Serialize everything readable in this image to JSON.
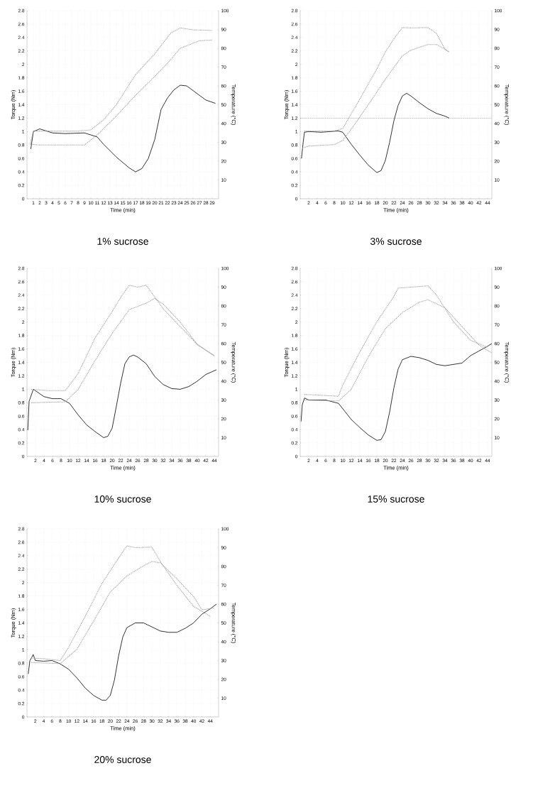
{
  "chart_data": [
    {
      "type": "line",
      "title": "1% sucrose",
      "xlabel": "Time (min)",
      "ylabel": "Torque (Nm)",
      "y2label": "Temperature (°C)",
      "grid": true,
      "xlim": [
        0,
        30
      ],
      "xticks": [
        1,
        2,
        3,
        4,
        5,
        6,
        7,
        8,
        9,
        10,
        11,
        12,
        13,
        14,
        15,
        16,
        17,
        18,
        19,
        20,
        21,
        22,
        23,
        24,
        25,
        26,
        27,
        28,
        29
      ],
      "ylim": [
        0,
        2.8
      ],
      "yticks": [
        0,
        0.2,
        0.4,
        0.6,
        0.8,
        1,
        1.2,
        1.4,
        1.6,
        1.8,
        2,
        2.2,
        2.4,
        2.6,
        2.8
      ],
      "y2lim": [
        0,
        100
      ],
      "y2ticks": [
        10,
        20,
        30,
        40,
        50,
        60,
        70,
        80,
        90,
        100
      ],
      "series": [
        {
          "color": "#000000",
          "line_style": "solid",
          "x": [
            0.6,
            1,
            2,
            4,
            6,
            9,
            11,
            12,
            14,
            16,
            17,
            18,
            19,
            20,
            21,
            22,
            23,
            24,
            25,
            26,
            27,
            28,
            29.5
          ],
          "values": [
            0.74,
            1.0,
            1.04,
            0.98,
            0.97,
            0.98,
            0.92,
            0.81,
            0.62,
            0.46,
            0.4,
            0.45,
            0.6,
            0.88,
            1.33,
            1.5,
            1.62,
            1.69,
            1.68,
            1.61,
            1.54,
            1.47,
            1.42
          ]
        },
        {
          "color": "#999999",
          "line_style": "dotted",
          "axis": "y2",
          "x": [
            0.5,
            1,
            4,
            8,
            10,
            12,
            14,
            17,
            20,
            22.5,
            24,
            26,
            29
          ],
          "values": [
            29,
            36,
            36,
            36,
            36.6,
            42,
            50,
            66,
            77,
            88,
            90.8,
            89.8,
            89.5
          ]
        },
        {
          "color": "#999999",
          "line_style": "dotted",
          "axis": "y2",
          "x": [
            0.5,
            2,
            5,
            9,
            11,
            14,
            17,
            20,
            22,
            24,
            27,
            29
          ],
          "values": [
            29,
            28.6,
            28.6,
            28.6,
            34,
            44,
            55,
            65,
            72,
            80,
            84,
            84.4
          ]
        }
      ]
    },
    {
      "type": "line",
      "title": "3% sucrose",
      "xlabel": "Time (min)",
      "ylabel": "Torque (Nm)",
      "y2label": "Temperature (°C)",
      "grid": true,
      "xlim": [
        0,
        45
      ],
      "xticks": [
        2,
        4,
        6,
        8,
        10,
        12,
        14,
        16,
        18,
        20,
        22,
        24,
        26,
        28,
        30,
        32,
        34,
        36,
        38,
        40,
        42,
        44
      ],
      "ylim": [
        0,
        2.8
      ],
      "yticks": [
        0,
        0.2,
        0.4,
        0.6,
        0.8,
        1,
        1.2,
        1.4,
        1.6,
        1.8,
        2,
        2.2,
        2.4,
        2.6,
        2.8
      ],
      "y2lim": [
        0,
        100
      ],
      "y2ticks": [
        10,
        20,
        30,
        40,
        50,
        60,
        70,
        80,
        90,
        100
      ],
      "ref_lines": [
        {
          "axis": "y",
          "value": 1.2,
          "color": "#555555",
          "line_style": "dotted"
        }
      ],
      "series": [
        {
          "color": "#000000",
          "line_style": "solid",
          "x": [
            0.3,
            0.7,
            1,
            2,
            5,
            9,
            10,
            12,
            14,
            16,
            18,
            19,
            20,
            21,
            22,
            23,
            24,
            25,
            26,
            28,
            30,
            32,
            34,
            35
          ],
          "values": [
            0.6,
            0.84,
            0.99,
            1.0,
            0.99,
            1.01,
            0.99,
            0.81,
            0.65,
            0.5,
            0.39,
            0.42,
            0.57,
            0.84,
            1.16,
            1.39,
            1.53,
            1.57,
            1.53,
            1.43,
            1.34,
            1.27,
            1.23,
            1.2
          ]
        },
        {
          "color": "#999999",
          "line_style": "dotted",
          "axis": "y2",
          "x": [
            1,
            4,
            8,
            10,
            14,
            18,
            20,
            22,
            24,
            26,
            30,
            32,
            34,
            35
          ],
          "values": [
            36,
            36,
            36,
            37.4,
            53,
            69,
            78,
            85,
            91,
            90.8,
            91,
            88,
            79.5,
            78
          ]
        },
        {
          "color": "#999999",
          "line_style": "dotted",
          "axis": "y2",
          "x": [
            0.5,
            2,
            8,
            10,
            12,
            16,
            20,
            24,
            26,
            30,
            32,
            34,
            35
          ],
          "values": [
            27,
            28,
            28.8,
            31,
            37,
            50,
            63.5,
            76,
            79,
            82,
            82,
            79.5,
            78
          ]
        }
      ]
    },
    {
      "type": "line",
      "title": "10% sucrose",
      "xlabel": "Time (min)",
      "ylabel": "Torque (Nm)",
      "y2label": "Temperature (°C)",
      "grid": true,
      "xlim": [
        0,
        45
      ],
      "xticks": [
        2,
        4,
        6,
        8,
        10,
        12,
        14,
        16,
        18,
        20,
        22,
        24,
        26,
        28,
        30,
        32,
        34,
        36,
        38,
        40,
        42,
        44
      ],
      "ylim": [
        0,
        2.8
      ],
      "yticks": [
        0,
        0.2,
        0.4,
        0.6,
        0.8,
        1,
        1.2,
        1.4,
        1.6,
        1.8,
        2,
        2.2,
        2.4,
        2.6,
        2.8
      ],
      "y2lim": [
        0,
        100
      ],
      "y2ticks": [
        10,
        20,
        30,
        40,
        50,
        60,
        70,
        80,
        90,
        100
      ],
      "series": [
        {
          "color": "#000000",
          "line_style": "solid",
          "x": [
            0.2,
            0.5,
            1.5,
            4,
            6,
            8,
            10,
            12,
            14,
            16,
            18,
            19,
            20,
            21,
            22,
            23,
            24,
            25,
            26,
            28,
            30,
            32,
            34,
            36,
            38,
            40,
            42,
            44.5
          ],
          "values": [
            0.39,
            0.82,
            1.0,
            0.89,
            0.86,
            0.86,
            0.79,
            0.62,
            0.47,
            0.37,
            0.28,
            0.3,
            0.42,
            0.75,
            1.09,
            1.38,
            1.48,
            1.51,
            1.48,
            1.38,
            1.19,
            1.07,
            1.01,
            1.0,
            1.04,
            1.12,
            1.22,
            1.29
          ]
        },
        {
          "color": "#999999",
          "line_style": "dotted",
          "axis": "y2",
          "x": [
            1,
            5,
            9,
            12,
            16,
            20,
            22,
            24,
            26,
            28,
            32,
            36,
            40,
            44
          ],
          "values": [
            35.6,
            35,
            35,
            44,
            63,
            77,
            84.5,
            91,
            90,
            91,
            78.5,
            69,
            59.5,
            53.5
          ]
        },
        {
          "color": "#999999",
          "line_style": "dotted",
          "axis": "y2",
          "x": [
            1,
            5,
            9,
            12,
            16,
            20,
            24,
            28,
            30,
            32,
            36,
            40,
            44
          ],
          "values": [
            28.5,
            28.8,
            29,
            35.6,
            51,
            65.4,
            78,
            81.5,
            84,
            81,
            71.4,
            59.5,
            53.5
          ]
        }
      ]
    },
    {
      "type": "line",
      "title": "15% sucrose",
      "xlabel": "Time (min)",
      "ylabel": "Torque (Nm)",
      "y2label": "Temperature (°C)",
      "grid": true,
      "xlim": [
        0,
        45
      ],
      "xticks": [
        2,
        4,
        6,
        8,
        10,
        12,
        14,
        16,
        18,
        20,
        22,
        24,
        26,
        28,
        30,
        32,
        34,
        36,
        38,
        40,
        42,
        44
      ],
      "ylim": [
        0,
        2.8
      ],
      "yticks": [
        0,
        0.2,
        0.4,
        0.6,
        0.8,
        1,
        1.2,
        1.4,
        1.6,
        1.8,
        2,
        2.2,
        2.4,
        2.6,
        2.8
      ],
      "y2lim": [
        0,
        100
      ],
      "y2ticks": [
        10,
        20,
        30,
        40,
        50,
        60,
        70,
        80,
        90,
        100
      ],
      "series": [
        {
          "color": "#000000",
          "line_style": "solid",
          "x": [
            0.2,
            0.5,
            1,
            2,
            6,
            9,
            10,
            12,
            14,
            16,
            18,
            19,
            20,
            21,
            22,
            23,
            24,
            26,
            28,
            30,
            32,
            34,
            36,
            38,
            40,
            42,
            44,
            45
          ],
          "values": [
            0.52,
            0.77,
            0.87,
            0.84,
            0.84,
            0.79,
            0.71,
            0.55,
            0.43,
            0.32,
            0.24,
            0.25,
            0.37,
            0.66,
            1.02,
            1.3,
            1.44,
            1.49,
            1.47,
            1.43,
            1.37,
            1.35,
            1.37,
            1.39,
            1.5,
            1.57,
            1.64,
            1.68
          ]
        },
        {
          "color": "#999999",
          "line_style": "dotted",
          "axis": "y2",
          "x": [
            1,
            5,
            9,
            10,
            14,
            18,
            22,
            23,
            26,
            30,
            32,
            36,
            40,
            44
          ],
          "values": [
            33,
            32.5,
            32,
            38,
            55.5,
            71.6,
            85,
            89.5,
            90,
            90.7,
            85.8,
            71.6,
            61.7,
            58
          ]
        },
        {
          "color": "#999999",
          "line_style": "dotted",
          "axis": "y2",
          "x": [
            1,
            5,
            9,
            12,
            16,
            20,
            24,
            28,
            30,
            34,
            38,
            42,
            45
          ],
          "values": [
            30,
            29.7,
            29.5,
            35.7,
            53,
            67.9,
            76.5,
            82,
            83.3,
            79,
            69,
            59.2,
            55
          ]
        }
      ]
    },
    {
      "type": "line",
      "title": "20% sucrose",
      "xlabel": "Time (min)",
      "ylabel": "Torque (Nm)",
      "y2label": "Temperature (°C)",
      "grid": true,
      "xlim": [
        0,
        46
      ],
      "xticks": [
        2,
        4,
        6,
        8,
        10,
        12,
        14,
        16,
        18,
        20,
        22,
        24,
        26,
        28,
        30,
        32,
        34,
        36,
        38,
        40,
        42,
        44
      ],
      "ylim": [
        0,
        2.8
      ],
      "yticks": [
        0,
        0.2,
        0.4,
        0.6,
        0.8,
        1,
        1.2,
        1.4,
        1.6,
        1.8,
        2,
        2.2,
        2.4,
        2.6,
        2.8
      ],
      "y2lim": [
        0,
        100
      ],
      "y2ticks": [
        10,
        20,
        30,
        40,
        50,
        60,
        70,
        80,
        90,
        100
      ],
      "series": [
        {
          "color": "#000000",
          "line_style": "solid",
          "x": [
            0.3,
            0.7,
            1,
            1.5,
            2,
            4,
            6,
            8,
            10,
            12,
            14,
            16,
            18,
            19,
            20,
            21,
            22,
            23,
            24,
            26,
            28,
            30,
            32,
            34,
            36,
            38,
            40,
            42,
            44,
            45.5
          ],
          "values": [
            0.64,
            0.84,
            0.87,
            0.93,
            0.84,
            0.83,
            0.84,
            0.79,
            0.71,
            0.58,
            0.43,
            0.32,
            0.25,
            0.25,
            0.32,
            0.55,
            0.91,
            1.19,
            1.33,
            1.4,
            1.4,
            1.34,
            1.28,
            1.26,
            1.26,
            1.32,
            1.4,
            1.53,
            1.61,
            1.68
          ]
        },
        {
          "color": "#999999",
          "line_style": "dotted",
          "axis": "y2",
          "x": [
            1,
            4,
            8,
            10,
            14,
            18,
            22,
            24,
            26,
            30,
            32,
            36,
            40,
            44
          ],
          "values": [
            31.3,
            31,
            30,
            37,
            53.5,
            71,
            84.5,
            91,
            90,
            90.3,
            82.7,
            69.9,
            58.8,
            53.5
          ]
        },
        {
          "color": "#999999",
          "line_style": "dotted",
          "axis": "y2",
          "x": [
            1,
            4,
            8,
            12,
            16,
            20,
            24,
            28,
            30,
            32,
            36,
            40,
            42,
            45
          ],
          "values": [
            29,
            28.7,
            28.4,
            36,
            51,
            66.4,
            75,
            80.4,
            82.7,
            82,
            73.4,
            64,
            57,
            58
          ]
        }
      ]
    }
  ]
}
